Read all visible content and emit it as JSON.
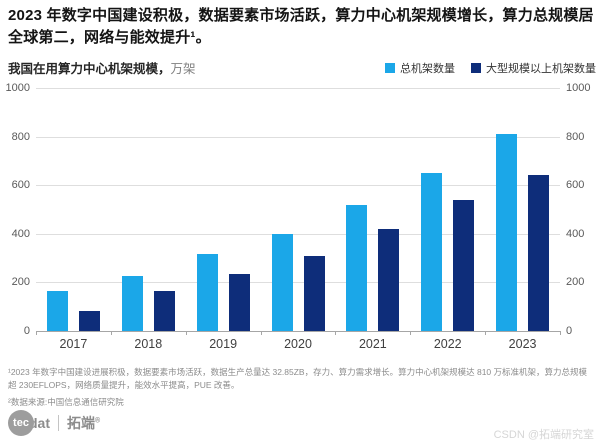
{
  "title": "2023 年数字中国建设积极，数据要素市场活跃，算力中心机架规模增长，算力总规模居全球第二，网络与能效提升¹。",
  "subtitle": {
    "label": "我国在用算力中心机架规模，",
    "unit": "万架"
  },
  "chart_data": {
    "type": "bar",
    "title": "我国在用算力中心机架规模",
    "unit": "万架",
    "categories": [
      "2017",
      "2018",
      "2019",
      "2020",
      "2021",
      "2022",
      "2023"
    ],
    "series": [
      {
        "name": "总机架数量",
        "color": "#1ba7e8",
        "values": [
          166,
          226,
          315,
          400,
          520,
          650,
          810
        ]
      },
      {
        "name": "大型规模以上机架数量",
        "color": "#0e2d7a",
        "values": [
          83,
          165,
          235,
          310,
          420,
          540,
          640
        ]
      }
    ],
    "ylim": [
      0,
      1000
    ],
    "yticks": [
      0,
      200,
      400,
      600,
      800,
      1000
    ],
    "grid": true,
    "legend_position": "top-right",
    "y_axis_sides": "both"
  },
  "footnotes": [
    "¹2023 年数字中国建设进展积极，数据要素市场活跃，数据生产总量达 32.85ZB，存力、算力需求增长。算力中心机架规模达 810 万标准机架，算力总规模超 230EFLOPS，网络质量提升，能效水平提高，PUE 改善。",
    "²数据来源:中国信息通信研究院"
  ],
  "logo": {
    "circle": "tec",
    "suffix": "dat",
    "brand": "拓端",
    "reg": "®"
  },
  "watermark": "CSDN @拓端研究室"
}
